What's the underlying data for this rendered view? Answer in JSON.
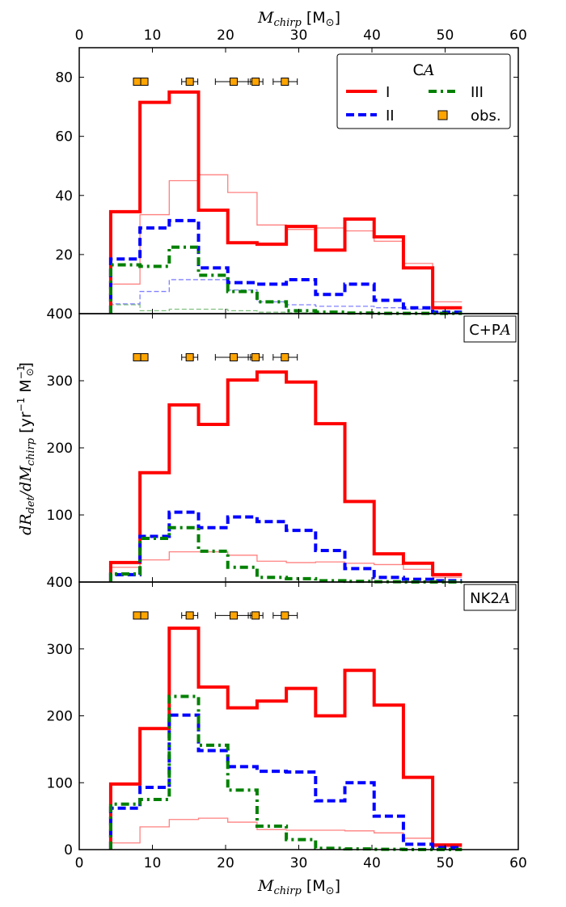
{
  "chart_data": [
    {
      "type": "step-histogram",
      "panel_label": "C",
      "panel_label_sub": "A",
      "top_xlabel": "M",
      "top_xlabel_sub": "chirp",
      "top_xlabel_unit": "[M",
      "top_xlabel_unit_end": "]",
      "xlim": [
        0,
        60
      ],
      "ylim": [
        0,
        90
      ],
      "xticks": [
        "0",
        "10",
        "20",
        "30",
        "40",
        "50",
        "60"
      ],
      "yticks": [
        "20",
        "40",
        "60",
        "80"
      ],
      "edges": [
        4.3,
        8.3,
        12.3,
        16.3,
        20.3,
        24.3,
        28.3,
        32.3,
        36.3,
        40.3,
        44.3,
        48.3,
        52.3
      ],
      "series": [
        {
          "name": "I",
          "style": "solid-red",
          "values": [
            34.5,
            71.5,
            75,
            35,
            24,
            23.5,
            29.5,
            21.5,
            32,
            26,
            15.5,
            2
          ]
        },
        {
          "name": "II",
          "style": "dashed-blue",
          "values": [
            18.5,
            29,
            31.5,
            15.5,
            10.5,
            10,
            11.5,
            6.5,
            10,
            4.5,
            2,
            0.5
          ]
        },
        {
          "name": "III",
          "style": "dashdot-green",
          "values": [
            16.5,
            16,
            22.5,
            13,
            7.5,
            4,
            1,
            0.5,
            0.2,
            0.1,
            0.1,
            0.1
          ]
        },
        {
          "name": "I (faint)",
          "style": "thin-red",
          "values": [
            10,
            33.5,
            45,
            47,
            41,
            30,
            28.5,
            29,
            28,
            24.5,
            17,
            4
          ]
        },
        {
          "name": "II (faint)",
          "style": "thin-dashed-blue",
          "values": [
            3.3,
            7.5,
            11.5,
            11.5,
            8,
            4,
            3,
            2.5,
            2.5,
            2,
            1.5,
            0.5
          ]
        },
        {
          "name": "III (faint)",
          "style": "thin-dashed-green",
          "values": [
            3,
            1,
            1.5,
            1.5,
            1,
            0.5,
            0.3,
            0.2,
            0.1,
            0.1,
            0.1,
            0.1
          ]
        }
      ],
      "observations": {
        "y": 78.5,
        "points": [
          {
            "x": 7.9,
            "err": [
              0.2,
              0.2
            ]
          },
          {
            "x": 8.9,
            "err": [
              0.3,
              0.3
            ]
          },
          {
            "x": 15.1,
            "err": [
              1.1,
              1.1
            ]
          },
          {
            "x": 21.1,
            "err": [
              2.5,
              2.3
            ]
          },
          {
            "x": 24.1,
            "err": [
              1.0,
              1.0
            ]
          },
          {
            "x": 28.1,
            "err": [
              1.6,
              1.7
            ]
          }
        ]
      },
      "legend": {
        "title": "C",
        "title_sub": "A",
        "entries": [
          "I",
          "III",
          "II",
          "obs."
        ]
      }
    },
    {
      "type": "step-histogram",
      "panel_label": "C+P",
      "panel_label_sub": "A",
      "xlim": [
        0,
        60
      ],
      "ylim": [
        0,
        400
      ],
      "yticks": [
        "100",
        "200",
        "300",
        "400"
      ],
      "edges": [
        4.3,
        8.3,
        12.3,
        16.3,
        20.3,
        24.3,
        28.3,
        32.3,
        36.3,
        40.3,
        44.3,
        48.3,
        52.3
      ],
      "series": [
        {
          "name": "I",
          "style": "solid-red",
          "values": [
            29,
            163,
            264,
            235,
            301,
            313,
            298,
            236,
            120,
            42,
            28,
            11
          ]
        },
        {
          "name": "II",
          "style": "dashed-blue",
          "values": [
            11,
            68,
            104,
            81,
            97,
            90,
            77,
            47,
            20,
            7,
            4,
            2
          ]
        },
        {
          "name": "III",
          "style": "dashdot-green",
          "values": [
            12,
            65,
            81,
            46,
            22,
            7,
            5,
            2,
            1,
            0.5,
            0.2,
            0.1
          ]
        },
        {
          "name": "I (faint)",
          "style": "thin-red",
          "values": [
            22,
            33,
            45,
            45,
            40,
            31,
            29,
            30,
            28,
            26,
            19,
            7
          ]
        }
      ],
      "observations": {
        "y": 335,
        "points": [
          {
            "x": 7.9,
            "err": [
              0.2,
              0.2
            ]
          },
          {
            "x": 8.9,
            "err": [
              0.3,
              0.3
            ]
          },
          {
            "x": 15.1,
            "err": [
              1.1,
              1.1
            ]
          },
          {
            "x": 21.1,
            "err": [
              2.5,
              2.3
            ]
          },
          {
            "x": 24.1,
            "err": [
              1.0,
              1.0
            ]
          },
          {
            "x": 28.1,
            "err": [
              1.6,
              1.7
            ]
          }
        ]
      },
      "ylabel": "dR",
      "ylabel_sub": "det",
      "ylabel_mid": "/dM",
      "ylabel_sub2": "chirp",
      "ylabel_units": "[yr",
      "ylabel_exp1": "−1",
      "ylabel_m": " M",
      "ylabel_exp2": "−1",
      "ylabel_end": "]"
    },
    {
      "type": "step-histogram",
      "panel_label": "NK2",
      "panel_label_sub": "A",
      "xlabel": "M",
      "xlabel_sub": "chirp",
      "xlabel_unit": "[M",
      "xlabel_unit_end": "]",
      "xlim": [
        0,
        60
      ],
      "ylim": [
        0,
        400
      ],
      "xticks": [
        "0",
        "10",
        "20",
        "30",
        "40",
        "50",
        "60"
      ],
      "yticks": [
        "0",
        "100",
        "200",
        "300",
        "400"
      ],
      "edges": [
        4.3,
        8.3,
        12.3,
        16.3,
        20.3,
        24.3,
        28.3,
        32.3,
        36.3,
        40.3,
        44.3,
        48.3,
        52.3
      ],
      "series": [
        {
          "name": "I",
          "style": "solid-red",
          "values": [
            98,
            181,
            331,
            243,
            212,
            222,
            241,
            200,
            268,
            216,
            108,
            7
          ]
        },
        {
          "name": "II",
          "style": "dashed-blue",
          "values": [
            62,
            93,
            201,
            148,
            124,
            117,
            116,
            73,
            100,
            50,
            8,
            3
          ]
        },
        {
          "name": "III",
          "style": "dashdot-green",
          "values": [
            68,
            75,
            229,
            156,
            89,
            35,
            15,
            2,
            1,
            0.5,
            0.2,
            0.1
          ]
        },
        {
          "name": "I (faint)",
          "style": "thin-red",
          "values": [
            10,
            34,
            45,
            47,
            41,
            30,
            29,
            29,
            28,
            25,
            17,
            4
          ]
        }
      ],
      "observations": {
        "y": 350,
        "points": [
          {
            "x": 7.9,
            "err": [
              0.2,
              0.2
            ]
          },
          {
            "x": 8.9,
            "err": [
              0.3,
              0.3
            ]
          },
          {
            "x": 15.1,
            "err": [
              1.1,
              1.1
            ]
          },
          {
            "x": 21.1,
            "err": [
              2.5,
              2.3
            ]
          },
          {
            "x": 24.1,
            "err": [
              1.0,
              1.0
            ]
          },
          {
            "x": 28.1,
            "err": [
              1.6,
              1.7
            ]
          }
        ]
      }
    }
  ],
  "colors": {
    "red": "#ff0000",
    "blue": "#0000ff",
    "green": "#008000",
    "faint_red": "#ff8080",
    "faint_blue": "#8080ff",
    "faint_green": "#80c080",
    "obs": "#ffa500"
  }
}
